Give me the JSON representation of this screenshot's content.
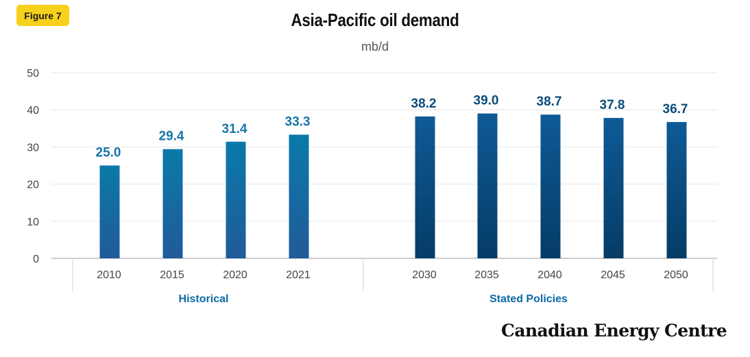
{
  "badge": "Figure 7",
  "brand": "Canadian Energy Centre",
  "colors": {
    "historical_top": "#0a7aa8",
    "historical_bottom": "#215a9a",
    "policy_top": "#0f5a96",
    "policy_bottom": "#053c66",
    "historical_label": "#1776a8",
    "policy_label": "#0b4c7a",
    "badge": "#f8d11c"
  },
  "chart_data": {
    "type": "bar",
    "title": "Asia-Pacific oil demand",
    "ylabel": "mb/d",
    "ylim": [
      0,
      50
    ],
    "yticks": [
      0,
      10,
      20,
      30,
      40,
      50
    ],
    "categories": [
      "2010",
      "2015",
      "2020",
      "2021",
      "2030",
      "2035",
      "2040",
      "2045",
      "2050"
    ],
    "values": [
      25.0,
      29.4,
      31.4,
      33.3,
      38.2,
      39.0,
      38.7,
      37.8,
      36.7
    ],
    "value_labels": [
      "25.0",
      "29.4",
      "31.4",
      "33.3",
      "38.2",
      "39.0",
      "38.7",
      "37.8",
      "36.7"
    ],
    "groups": [
      {
        "name": "Historical",
        "categories": [
          "2010",
          "2015",
          "2020",
          "2021"
        ]
      },
      {
        "name": "Stated Policies",
        "categories": [
          "2030",
          "2035",
          "2040",
          "2045",
          "2050"
        ]
      }
    ],
    "grid": true,
    "legend": "none"
  }
}
